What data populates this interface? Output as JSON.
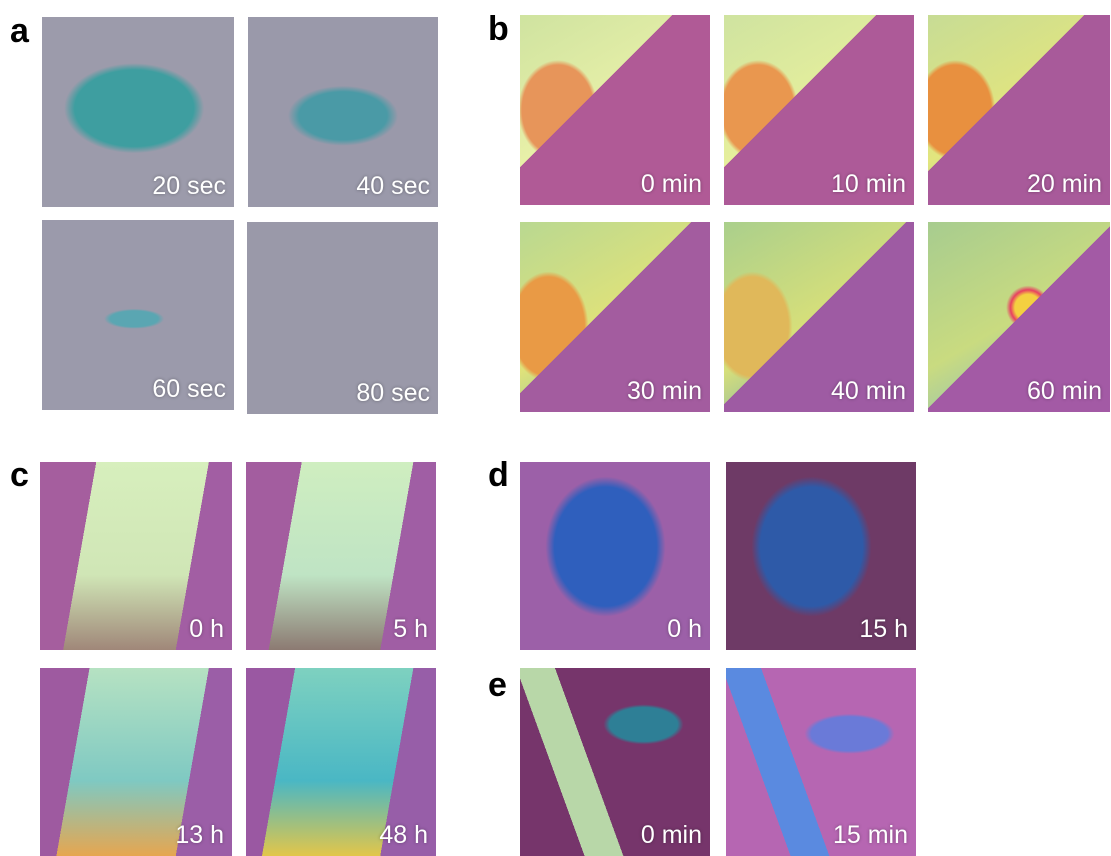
{
  "panels": [
    {
      "label": "a",
      "images": [
        {
          "caption": "20 sec"
        },
        {
          "caption": "40 sec"
        },
        {
          "caption": "60 sec"
        },
        {
          "caption": "80 sec"
        }
      ]
    },
    {
      "label": "b",
      "images": [
        {
          "caption": "0 min"
        },
        {
          "caption": "10 min"
        },
        {
          "caption": "20 min"
        },
        {
          "caption": "30 min"
        },
        {
          "caption": "40 min"
        },
        {
          "caption": "60 min"
        }
      ]
    },
    {
      "label": "c",
      "images": [
        {
          "caption": "0 h"
        },
        {
          "caption": "5 h"
        },
        {
          "caption": "13 h"
        },
        {
          "caption": "48 h"
        }
      ]
    },
    {
      "label": "d",
      "images": [
        {
          "caption": "0 h"
        },
        {
          "caption": "15 h"
        }
      ]
    },
    {
      "label": "e",
      "images": [
        {
          "caption": "0 min"
        },
        {
          "caption": "15 min"
        }
      ]
    }
  ]
}
